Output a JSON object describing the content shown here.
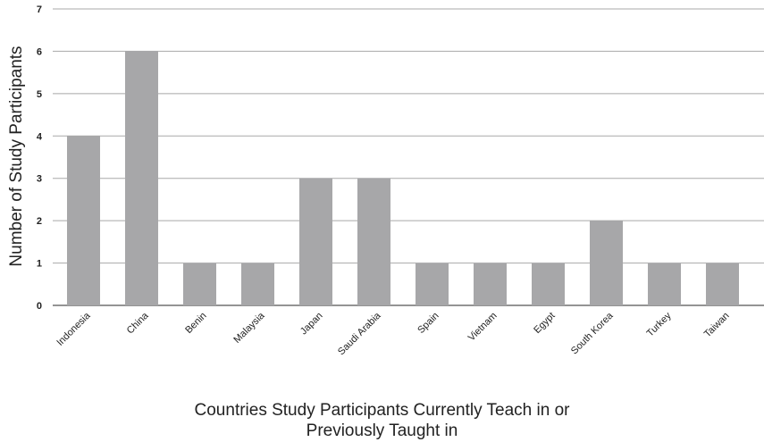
{
  "chart_data": {
    "type": "bar",
    "categories": [
      "Indonesia",
      "China",
      "Benin",
      "Malaysia",
      "Japan",
      "Saudi Arabia",
      "Spain",
      "Vietnam",
      "Egypt",
      "South Korea",
      "Turkey",
      "Taiwan"
    ],
    "values": [
      4,
      6,
      1,
      1,
      3,
      3,
      1,
      1,
      1,
      2,
      1,
      1
    ],
    "title": "",
    "xlabel_lines": [
      "Countries Study Participants Currently Teach in or",
      "Previously Taught in"
    ],
    "ylabel": "Number of Study Participants",
    "ylim": [
      0,
      7
    ],
    "yticks": [
      "0",
      "1",
      "2",
      "3",
      "4",
      "5",
      "6",
      "7"
    ],
    "grid": true,
    "legend": "none"
  },
  "colors": {
    "bar": "#a7a7a9",
    "grid": "#a8a8a8",
    "axis": "#555555",
    "text": "#222222"
  }
}
